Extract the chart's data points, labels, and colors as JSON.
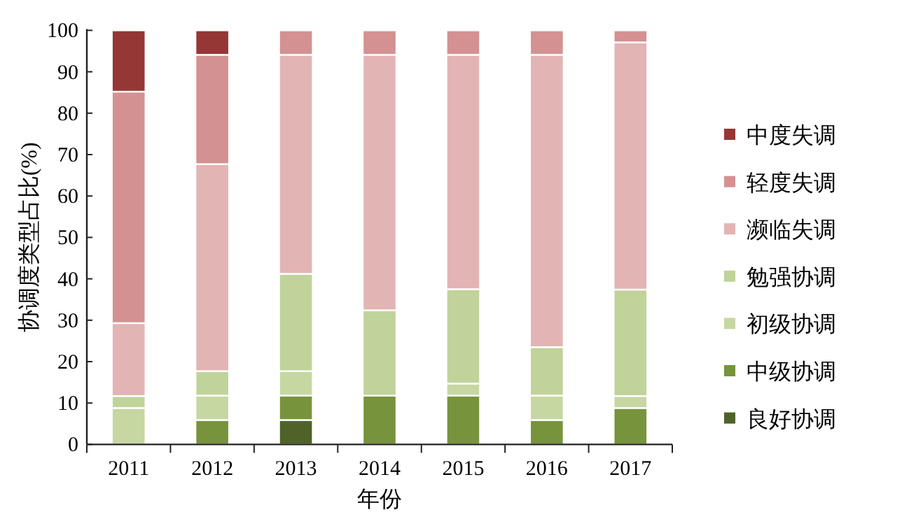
{
  "chart_data": {
    "type": "bar",
    "stacked": true,
    "xlabel": "年份",
    "ylabel": "协调度类型占比(%)",
    "categories": [
      "2011",
      "2012",
      "2013",
      "2014",
      "2015",
      "2016",
      "2017"
    ],
    "ylim": [
      0,
      100
    ],
    "yticks": [
      0,
      10,
      20,
      30,
      40,
      50,
      60,
      70,
      80,
      90,
      100
    ],
    "legend": "right",
    "series": [
      {
        "name": "良好协调",
        "color": "#4f6228",
        "values": [
          0,
          0,
          5.9,
          0,
          0,
          0,
          0
        ]
      },
      {
        "name": "中级协调",
        "color": "#77933c",
        "values": [
          0,
          5.9,
          5.9,
          11.8,
          11.8,
          5.9,
          8.8
        ]
      },
      {
        "name": "初级协调",
        "color": "#c6d7a2",
        "values": [
          8.8,
          5.9,
          5.9,
          0,
          2.9,
          5.9,
          2.9
        ]
      },
      {
        "name": "勉强协调",
        "color": "#c0d39a",
        "values": [
          2.9,
          5.9,
          23.5,
          20.6,
          22.8,
          11.7,
          25.7
        ]
      },
      {
        "name": "濒临失调",
        "color": "#e3b4b4",
        "values": [
          17.6,
          50.0,
          52.9,
          61.7,
          56.6,
          70.6,
          59.7
        ]
      },
      {
        "name": "轻度失调",
        "color": "#d49191",
        "values": [
          55.9,
          26.4,
          5.9,
          5.9,
          5.9,
          5.9,
          2.9
        ]
      },
      {
        "name": "中度失调",
        "color": "#953735",
        "values": [
          14.8,
          5.9,
          0,
          0,
          0,
          0,
          0
        ]
      }
    ]
  }
}
